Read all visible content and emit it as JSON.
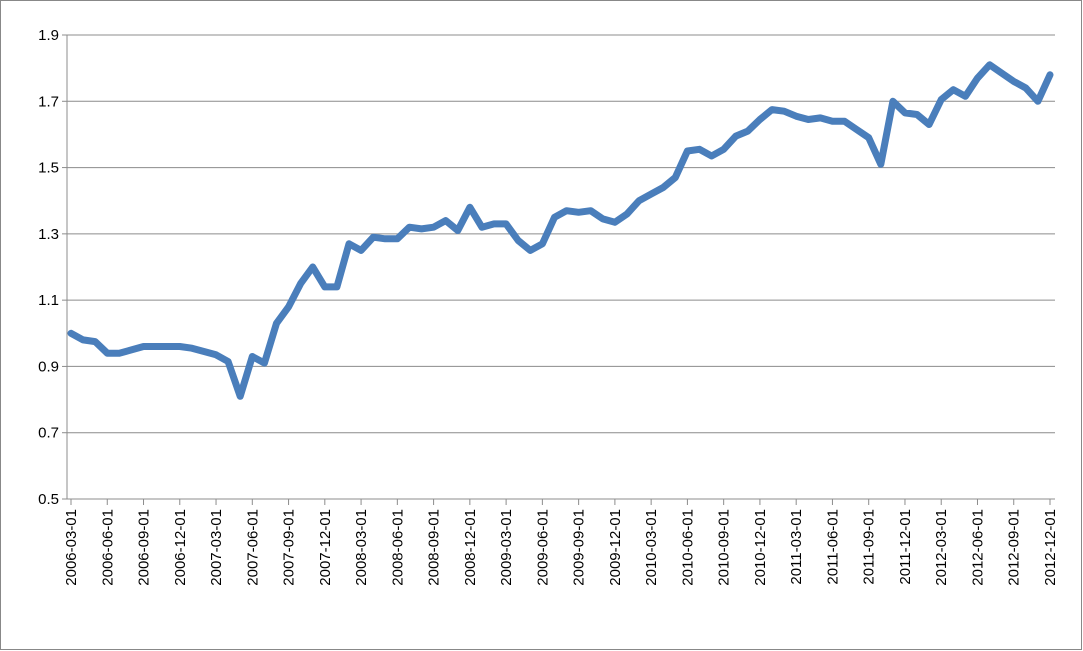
{
  "chart_data": {
    "type": "line",
    "categories": [
      "2006-03-01",
      null,
      null,
      "2006-06-01",
      null,
      null,
      "2006-09-01",
      null,
      null,
      "2006-12-01",
      null,
      null,
      "2007-03-01",
      null,
      null,
      "2007-06-01",
      null,
      null,
      "2007-09-01",
      null,
      null,
      "2007-12-01",
      null,
      null,
      "2008-03-01",
      null,
      null,
      "2008-06-01",
      null,
      null,
      "2008-09-01",
      null,
      null,
      "2008-12-01",
      null,
      null,
      "2009-03-01",
      null,
      null,
      "2009-06-01",
      null,
      null,
      "2009-09-01",
      null,
      null,
      "2009-12-01",
      null,
      null,
      "2010-03-01",
      null,
      null,
      "2010-06-01",
      null,
      null,
      "2010-09-01",
      null,
      null,
      "2010-12-01",
      null,
      null,
      "2011-03-01",
      null,
      null,
      "2011-06-01",
      null,
      null,
      "2011-09-01",
      null,
      null,
      "2011-12-01",
      null,
      null,
      "2012-03-01",
      null,
      null,
      "2012-06-01",
      null,
      null,
      "2012-09-01",
      null,
      null,
      "2012-12-01"
    ],
    "values": [
      1.0,
      0.98,
      0.975,
      0.94,
      0.94,
      0.95,
      0.96,
      0.96,
      0.96,
      0.96,
      0.955,
      0.945,
      0.935,
      0.915,
      0.81,
      0.93,
      0.91,
      1.03,
      1.08,
      1.15,
      1.2,
      1.14,
      1.14,
      1.27,
      1.25,
      1.29,
      1.285,
      1.285,
      1.32,
      1.315,
      1.32,
      1.34,
      1.31,
      1.38,
      1.32,
      1.33,
      1.33,
      1.28,
      1.25,
      1.27,
      1.35,
      1.37,
      1.365,
      1.37,
      1.345,
      1.335,
      1.36,
      1.4,
      1.42,
      1.44,
      1.47,
      1.55,
      1.555,
      1.535,
      1.555,
      1.595,
      1.61,
      1.645,
      1.675,
      1.67,
      1.655,
      1.645,
      1.65,
      1.64,
      1.64,
      1.615,
      1.59,
      1.51,
      1.7,
      1.665,
      1.66,
      1.63,
      1.705,
      1.735,
      1.715,
      1.77,
      1.81,
      1.785,
      1.76,
      1.74,
      1.7,
      1.78
    ],
    "color": "#4a7ebb",
    "ylim": [
      0.5,
      1.9
    ],
    "yticks": [
      0.5,
      0.7,
      0.9,
      1.1,
      1.3,
      1.5,
      1.7,
      1.9
    ],
    "grid": true
  }
}
